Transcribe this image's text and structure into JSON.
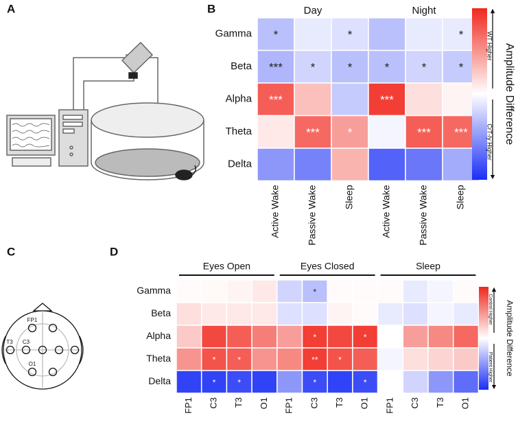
{
  "panel_labels": [
    "A",
    "B",
    "C",
    "D"
  ],
  "head_diagram": {
    "labels": [
      "FP1",
      "T3",
      "C3",
      "O1"
    ]
  },
  "chart_data": [
    {
      "type": "heatmap",
      "rows": [
        "Gamma",
        "Beta",
        "Alpha",
        "Theta",
        "Delta"
      ],
      "groups": [
        "Day",
        "Night"
      ],
      "columns": [
        "Active Wake",
        "Passive Wake",
        "Sleep",
        "Active Wake",
        "Passive Wake",
        "Sleep"
      ],
      "zlim": [
        -1,
        1
      ],
      "values": [
        [
          -0.3,
          -0.1,
          -0.15,
          -0.3,
          -0.1,
          -0.1
        ],
        [
          -0.35,
          -0.2,
          -0.3,
          -0.3,
          -0.2,
          -0.25
        ],
        [
          0.75,
          0.3,
          -0.25,
          0.9,
          0.15,
          0.05
        ],
        [
          0.1,
          0.7,
          0.45,
          -0.05,
          0.75,
          0.7
        ],
        [
          -0.5,
          -0.6,
          0.35,
          -0.75,
          -0.65,
          -0.4
        ]
      ],
      "annotations": [
        [
          "*",
          null,
          "*",
          null,
          null,
          "*"
        ],
        [
          "***",
          "*",
          "*",
          "*",
          "*",
          "*"
        ],
        [
          "***",
          null,
          null,
          "***",
          null,
          null
        ],
        [
          null,
          "***",
          "*",
          null,
          "***",
          "***"
        ],
        [
          null,
          null,
          null,
          null,
          null,
          null
        ]
      ],
      "colorbar_label": "Amplitude Difference",
      "colorbar_top": "WT Higher",
      "colorbar_bottom": "CrT-/y Higher"
    },
    {
      "type": "heatmap",
      "rows": [
        "Gamma",
        "Beta",
        "Alpha",
        "Theta",
        "Delta"
      ],
      "groups": [
        "Eyes Open",
        "Eyes Closed",
        "Sleep"
      ],
      "columns": [
        "FP1",
        "C3",
        "T3",
        "O1",
        "FP1",
        "C3",
        "T3",
        "O1",
        "FP1",
        "C3",
        "T3",
        "O1"
      ],
      "zlim": [
        -1,
        1
      ],
      "values": [
        [
          0.02,
          0.03,
          0.05,
          0.1,
          -0.2,
          -0.3,
          0.02,
          0.02,
          0.02,
          -0.1,
          -0.05,
          0.02
        ],
        [
          0.15,
          0.1,
          0.1,
          0.1,
          -0.15,
          -0.15,
          0.05,
          0.02,
          -0.1,
          -0.15,
          -0.05,
          -0.1
        ],
        [
          0.25,
          0.85,
          0.75,
          0.6,
          0.45,
          0.9,
          0.85,
          0.9,
          0.0,
          0.45,
          0.55,
          0.7
        ],
        [
          0.5,
          0.8,
          0.75,
          0.5,
          0.55,
          0.9,
          0.8,
          0.75,
          -0.05,
          0.15,
          0.2,
          0.25
        ],
        [
          -0.9,
          -0.9,
          -0.85,
          -0.9,
          -0.5,
          -0.85,
          -0.9,
          -0.85,
          0.0,
          -0.2,
          -0.5,
          -0.7
        ]
      ],
      "annotations": [
        [
          null,
          null,
          null,
          null,
          null,
          "*",
          null,
          null,
          null,
          null,
          null,
          null
        ],
        [
          null,
          null,
          null,
          null,
          null,
          null,
          null,
          null,
          null,
          null,
          null,
          null
        ],
        [
          null,
          null,
          null,
          null,
          null,
          "*",
          null,
          "*",
          null,
          null,
          null,
          null
        ],
        [
          null,
          "*",
          "*",
          null,
          null,
          "**",
          "*",
          null,
          null,
          null,
          null,
          null
        ],
        [
          null,
          "*",
          "*",
          null,
          null,
          "*",
          null,
          "*",
          null,
          null,
          null,
          null
        ]
      ],
      "colorbar_label": "Amplitude Difference",
      "colorbar_top": "Control Higher",
      "colorbar_bottom": "Patient Higher"
    }
  ]
}
